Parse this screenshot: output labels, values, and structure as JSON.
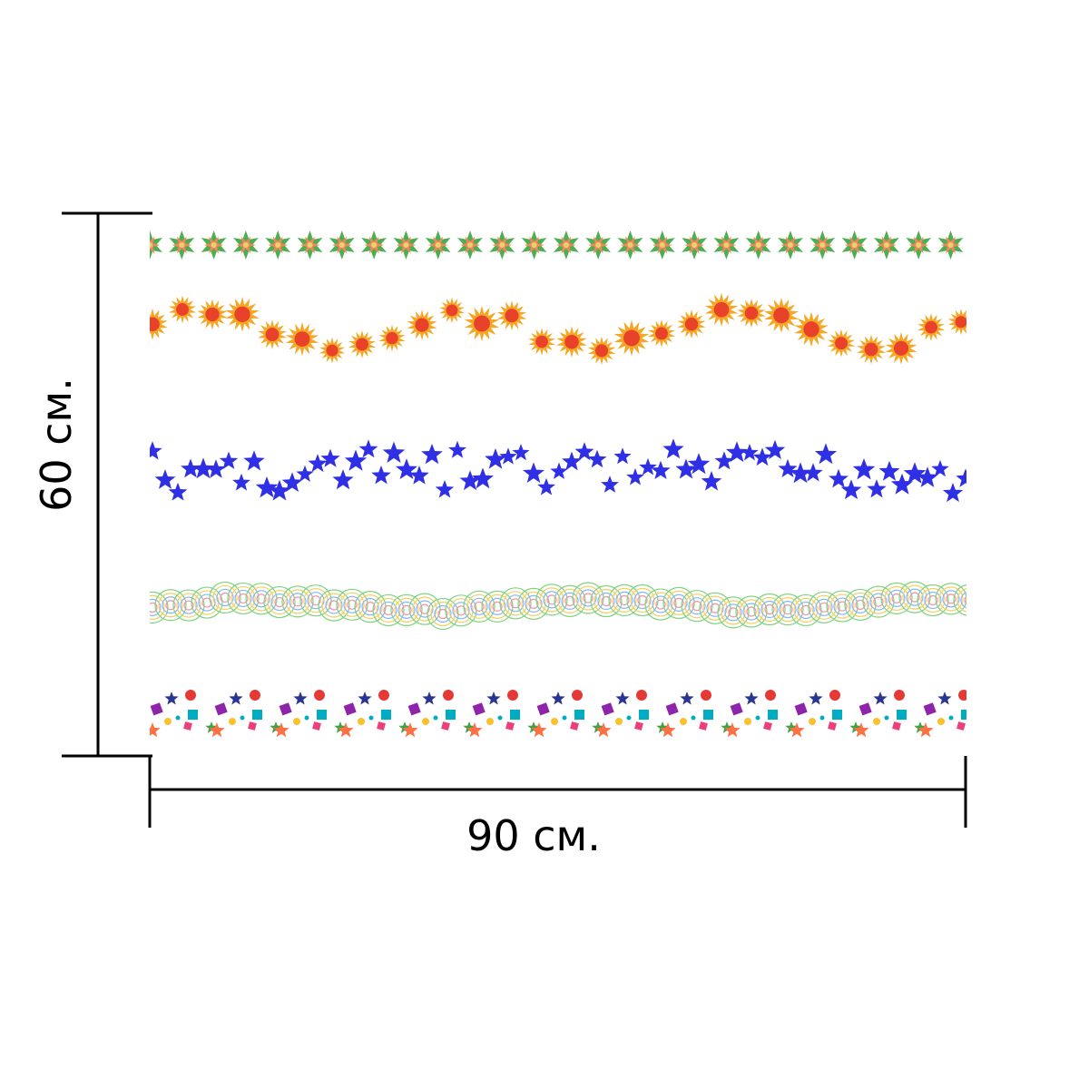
{
  "dimensions": {
    "height_label": "60 см.",
    "width_label": "90 см."
  },
  "borders": [
    {
      "pattern": "green-orange-six-point-star-icon",
      "colors": [
        "#4caf50",
        "#f4845f",
        "#e8d36a"
      ]
    },
    {
      "pattern": "orange-sunburst-icon",
      "colors": [
        "#f5a623",
        "#e8432a"
      ]
    },
    {
      "pattern": "blue-star-icon",
      "colors": [
        "#2f2fe6"
      ]
    },
    {
      "pattern": "concentric-circle-icon",
      "colors": [
        "#7ed37e",
        "#f0d060",
        "#8ab4f8",
        "#f48fb1"
      ]
    },
    {
      "pattern": "confetti-shapes-icon",
      "colors": [
        "#8e24aa",
        "#283593",
        "#e53935",
        "#00acc1",
        "#fbc02d",
        "#ec407a",
        "#ff7043",
        "#43a047"
      ]
    }
  ]
}
